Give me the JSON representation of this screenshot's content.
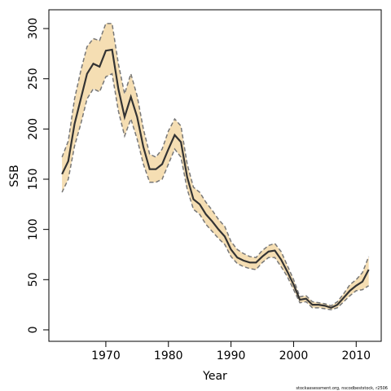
{
  "chart_data": {
    "type": "line",
    "xlabel": "Year",
    "ylabel": "SSB",
    "footnote": "stockassessment.org, nscodbeststock, r2506",
    "x": [
      1963,
      1964,
      1965,
      1966,
      1967,
      1968,
      1969,
      1970,
      1971,
      1972,
      1973,
      1974,
      1975,
      1976,
      1977,
      1978,
      1979,
      1980,
      1981,
      1982,
      1983,
      1984,
      1985,
      1986,
      1987,
      1988,
      1989,
      1990,
      1991,
      1992,
      1993,
      1994,
      1995,
      1996,
      1997,
      1998,
      1999,
      2000,
      2001,
      2002,
      2003,
      2004,
      2005,
      2006,
      2007,
      2008,
      2009,
      2010,
      2011,
      2012
    ],
    "values": [
      155,
      168,
      205,
      230,
      255,
      265,
      262,
      278,
      279,
      240,
      212,
      232,
      212,
      182,
      160,
      160,
      165,
      180,
      194,
      187,
      152,
      130,
      125,
      115,
      108,
      100,
      93,
      80,
      72,
      69,
      67,
      67,
      73,
      78,
      79,
      70,
      58,
      45,
      30,
      31,
      25,
      25,
      24,
      22,
      25,
      32,
      39,
      44,
      48,
      60
    ],
    "upper": [
      172,
      188,
      230,
      258,
      282,
      290,
      288,
      305,
      305,
      265,
      235,
      255,
      233,
      200,
      175,
      172,
      180,
      198,
      210,
      203,
      165,
      142,
      137,
      127,
      119,
      110,
      103,
      88,
      80,
      76,
      73,
      72,
      79,
      84,
      86,
      78,
      64,
      50,
      33,
      34,
      28,
      27,
      26,
      24,
      28,
      36,
      45,
      50,
      57,
      73
    ],
    "lower": [
      137,
      150,
      183,
      205,
      230,
      240,
      237,
      252,
      255,
      218,
      193,
      210,
      190,
      165,
      147,
      147,
      150,
      165,
      180,
      172,
      140,
      120,
      115,
      105,
      98,
      91,
      85,
      73,
      66,
      63,
      61,
      60,
      67,
      72,
      72,
      63,
      53,
      40,
      27,
      28,
      22,
      22,
      21,
      20,
      22,
      28,
      34,
      39,
      40,
      44
    ],
    "line_color": "#333333",
    "band_color": "#f5deb3",
    "band_edge_color": "#777777",
    "xlim": [
      1960.9,
      2014.0
    ],
    "ylim": [
      -11.4,
      318.7
    ],
    "xticks": [
      1970,
      1980,
      1990,
      2000,
      2010
    ],
    "yticks": [
      0,
      50,
      100,
      150,
      200,
      250,
      300
    ]
  }
}
